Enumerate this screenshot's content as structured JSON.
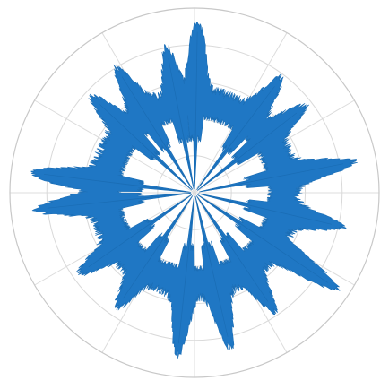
{
  "chart_data": {
    "type": "polar-area",
    "title": "",
    "r_range": [
      0,
      1
    ],
    "r_grid": [
      0.2,
      0.4,
      0.6,
      0.8,
      1.0
    ],
    "theta_grid_deg": [
      0,
      30,
      60,
      90,
      120,
      150,
      180,
      210,
      240,
      270,
      300,
      330
    ],
    "grid": true,
    "legend": "none",
    "series": [
      {
        "color": "#1f77c4",
        "base_radius": 0.5,
        "inner_radius_in_gaps": 0.1,
        "peaks": [
          {
            "theta": 89,
            "r": 0.87
          },
          {
            "theta": 101,
            "r": 0.74
          },
          {
            "theta": 122,
            "r": 0.74
          },
          {
            "theta": 137,
            "r": 0.7
          },
          {
            "theta": 173,
            "r": 0.82
          },
          {
            "theta": 186,
            "r": 0.8
          },
          {
            "theta": 215,
            "r": 0.7
          },
          {
            "theta": 236,
            "r": 0.69
          },
          {
            "theta": 264,
            "r": 0.82
          },
          {
            "theta": 283,
            "r": 0.8
          },
          {
            "theta": 304,
            "r": 0.71
          },
          {
            "theta": 326,
            "r": 0.87
          },
          {
            "theta": 347,
            "r": 0.76
          },
          {
            "theta": 11,
            "r": 0.82
          },
          {
            "theta": 38,
            "r": 0.7
          },
          {
            "theta": 53,
            "r": 0.72
          }
        ]
      }
    ]
  }
}
